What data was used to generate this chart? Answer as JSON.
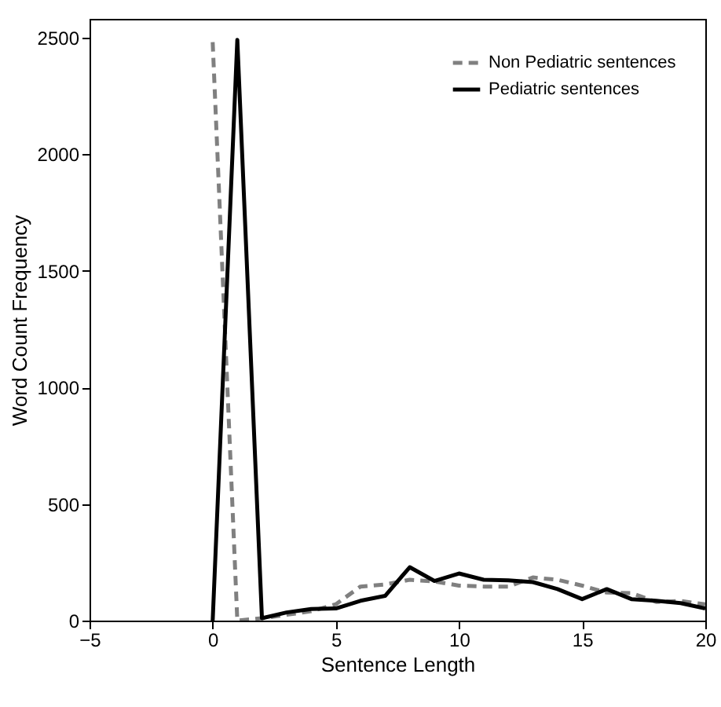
{
  "chart_data": {
    "type": "line",
    "xlabel": "Sentence Length",
    "ylabel": "Word Count Frequency",
    "x": [
      0,
      1,
      2,
      3,
      4,
      5,
      6,
      7,
      8,
      9,
      10,
      11,
      12,
      13,
      14,
      15,
      16,
      17,
      18,
      19,
      20
    ],
    "series": [
      {
        "name": "Non Pediatric sentences",
        "color": "#808080",
        "line_style": "dashed",
        "values": [
          2480,
          0,
          10,
          25,
          40,
          70,
          146,
          155,
          175,
          168,
          150,
          146,
          146,
          185,
          175,
          150,
          120,
          118,
          80,
          84,
          70
        ]
      },
      {
        "name": "Pediatric sentences",
        "color": "#000000",
        "line_style": "solid",
        "values": [
          0,
          2490,
          10,
          35,
          50,
          52,
          85,
          106,
          229,
          170,
          202,
          175,
          173,
          165,
          135,
          92,
          135,
          92,
          85,
          75,
          52
        ]
      }
    ],
    "xlim": [
      -5,
      20
    ],
    "xticks": [
      -5,
      0,
      5,
      10,
      15,
      20
    ],
    "ylim": [
      0,
      2580
    ],
    "yticks": [
      0,
      500,
      1000,
      1500,
      2000,
      2500
    ],
    "grid": false,
    "legend": "top right",
    "marker": "none"
  }
}
